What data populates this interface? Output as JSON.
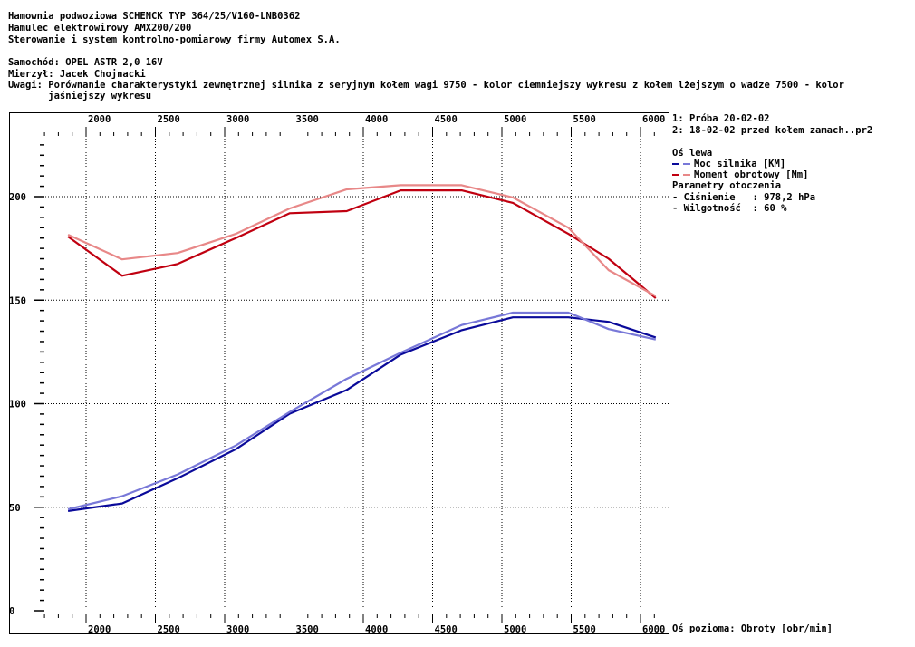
{
  "header": {
    "line1": "Hamownia podwoziowa SCHENCK TYP 364/25/V160-LNB0362",
    "line2": "Hamulec elektrowirowy AMX200/200",
    "line3": "Sterowanie i system kontrolno-pomiarowy firmy Automex S.A.",
    "car": "Samochód: OPEL ASTR 2,0 16V",
    "measured_by": "Mierzył: Jacek Chojnacki",
    "notes_1": "Uwagi: Porównanie charakterystyki zewnętrznej silnika z seryjnym kołem wagi 9750 - kolor ciemniejszy wykresu z kołem lżejszym o wadze 7500 - kolor",
    "notes_2": "       jaśniejszy wykresu"
  },
  "legend": {
    "run1": "1: Próba 20-02-02",
    "run2": "2: 18-02-02 przed kołem zamach..pr2",
    "left_axis": "Oś lewa",
    "power": "Moc silnika [KM]",
    "torque": "Moment obrotowy [Nm]",
    "env": "Parametry otoczenia",
    "pressure": "- Ciśnienie   : 978,2 hPa",
    "humidity": "- Wilgotność  : 60 %",
    "x_axis": "Oś pozioma: Obroty [obr/min]"
  },
  "colors": {
    "power_dark": "#0a0a9a",
    "power_light": "#7878d8",
    "torque_dark": "#c00010",
    "torque_light": "#e88888"
  },
  "chart_data": {
    "type": "line",
    "xlabel": "Obroty [obr/min]",
    "xlim": [
      1620,
      6120
    ],
    "ylim": [
      0,
      240
    ],
    "xticks": [
      2000,
      2500,
      3000,
      3500,
      4000,
      4500,
      5000,
      5500,
      6000
    ],
    "yticks": [
      0,
      50,
      100,
      150,
      200
    ],
    "grid": true,
    "x": [
      1870,
      2260,
      2660,
      3080,
      3470,
      3880,
      4270,
      4710,
      5080,
      5480,
      5770,
      6110
    ],
    "series": [
      {
        "name": "Moment obrotowy [Nm] - 1",
        "color": "#c00010",
        "values": [
          180.7,
          161.8,
          167.5,
          180,
          192,
          193,
          203,
          203,
          197,
          182,
          170,
          151
        ]
      },
      {
        "name": "Moment obrotowy [Nm] - 2",
        "color": "#e88888",
        "values": [
          181.6,
          169.7,
          172.8,
          182,
          194.3,
          203.5,
          205.5,
          205.5,
          199.6,
          185,
          164.5,
          152
        ]
      },
      {
        "name": "Moc silnika [KM] - 1",
        "color": "#0a0a9a",
        "values": [
          48.2,
          51.8,
          64,
          78,
          95.2,
          106.6,
          123.7,
          135.5,
          141.7,
          141.7,
          139.5,
          132
        ]
      },
      {
        "name": "Moc silnika [KM] - 2",
        "color": "#7878d8",
        "values": [
          49,
          55.3,
          65.8,
          79.8,
          96,
          112,
          124.6,
          138,
          144,
          144,
          136,
          131
        ]
      }
    ]
  }
}
